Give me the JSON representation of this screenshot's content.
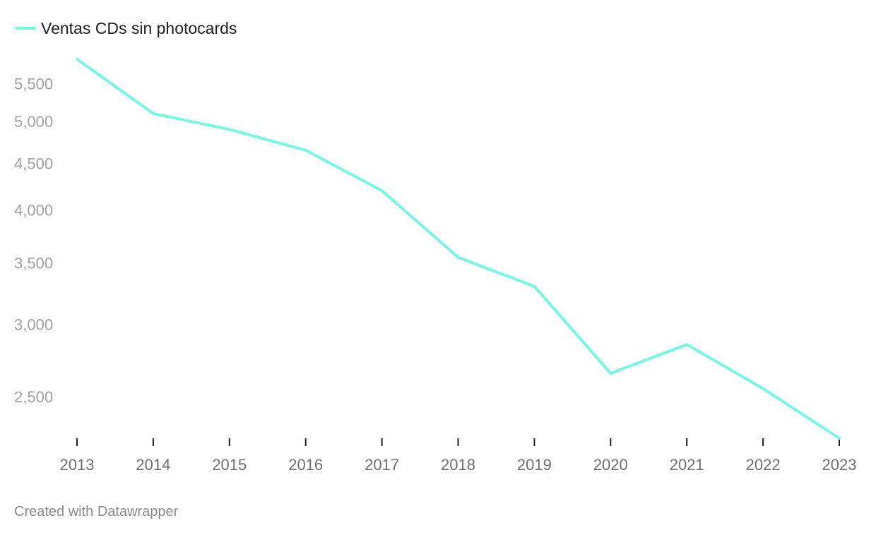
{
  "chart_data": {
    "type": "line",
    "y_scale": "log",
    "ylim": [
      2250,
      5900
    ],
    "x": [
      2013,
      2014,
      2015,
      2016,
      2017,
      2018,
      2019,
      2020,
      2021,
      2022,
      2023
    ],
    "x_tick_labels": [
      "2013",
      "2014",
      "2015",
      "2016",
      "2017",
      "2018",
      "2019",
      "2020",
      "2021",
      "2022",
      "2023"
    ],
    "y_ticks": [
      2500,
      3000,
      3500,
      4000,
      4500,
      5000,
      5500
    ],
    "y_tick_labels": [
      "2,500",
      "3,000",
      "3,500",
      "4,000",
      "4,500",
      "5,000",
      "5,500"
    ],
    "series": [
      {
        "name": "Ventas CDs sin photocards",
        "color": "#7af5e3",
        "values": [
          5850,
          5100,
          4900,
          4650,
          4200,
          3550,
          3300,
          2650,
          2850,
          2550,
          2250
        ]
      }
    ],
    "legend_position": "top-left",
    "grid": false
  },
  "footer": {
    "credit": "Created with Datawrapper"
  }
}
